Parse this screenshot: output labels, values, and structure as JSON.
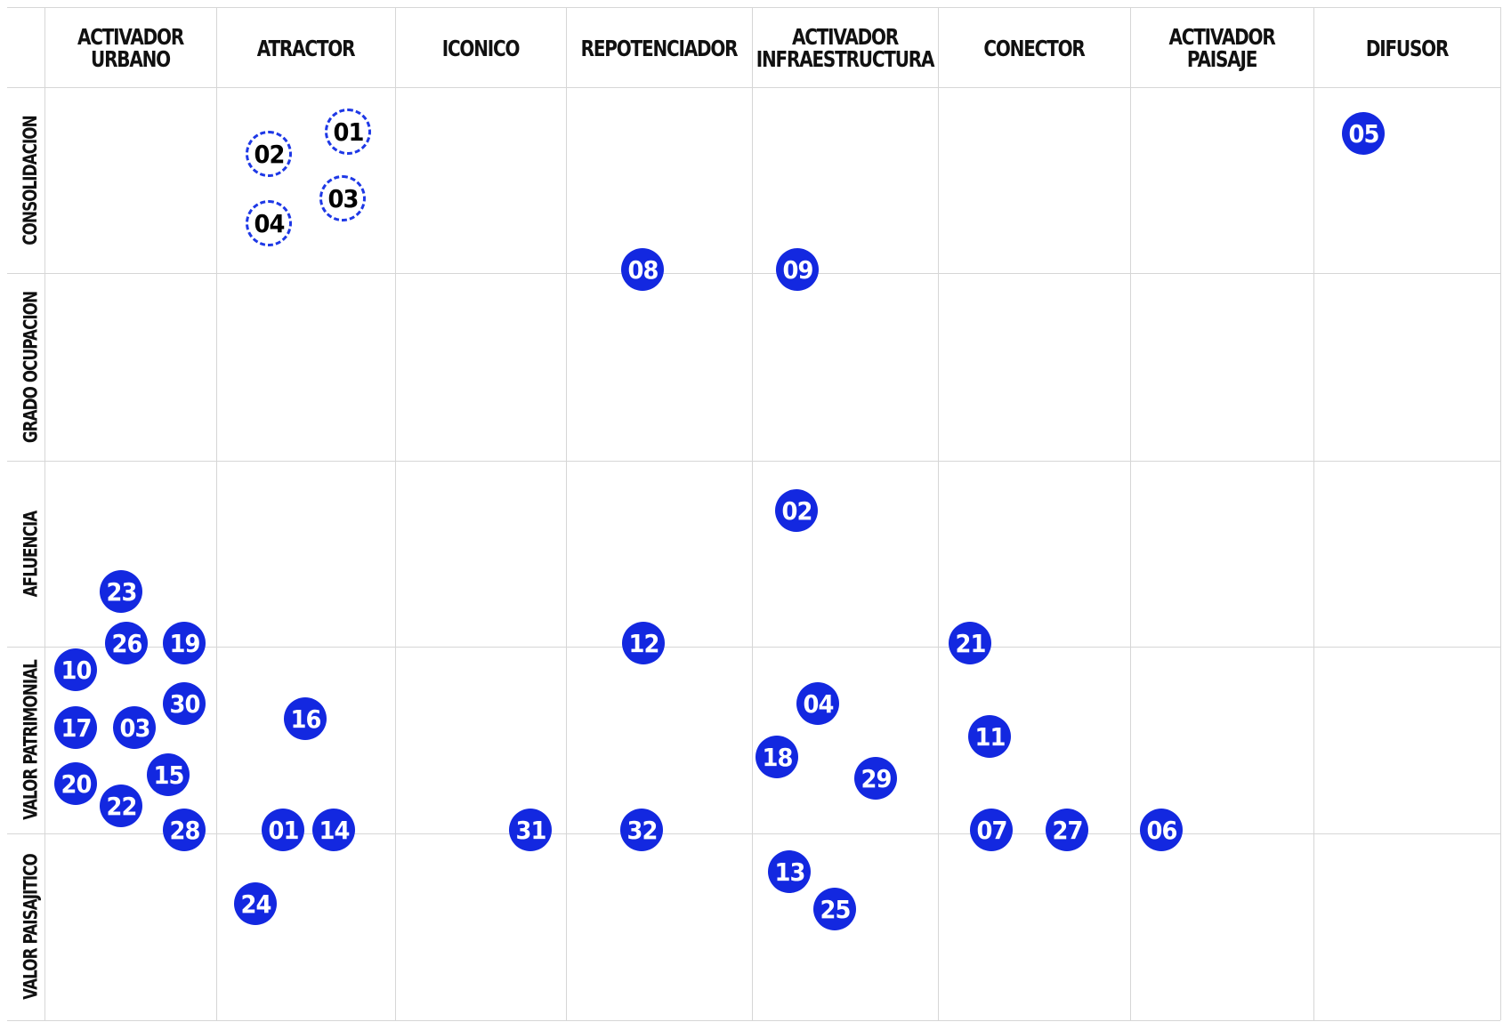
{
  "colors": {
    "accent": "#1328e0",
    "dashed_border": "#1e38e6",
    "grid": "#d6d6d6"
  },
  "columns": [
    {
      "label": "ACTIVADOR\nURBANO"
    },
    {
      "label": "ATRACTOR"
    },
    {
      "label": "ICONICO"
    },
    {
      "label": "REPOTENCIADOR"
    },
    {
      "label": "ACTIVADOR\nINFRAESTRUCTURA"
    },
    {
      "label": "CONECTOR"
    },
    {
      "label": "ACTIVADOR\nPAISAJE"
    },
    {
      "label": "DIFUSOR"
    }
  ],
  "rows": [
    {
      "label": "CONSOLIDACION"
    },
    {
      "label": "GRADO OCUPACION"
    },
    {
      "label": "AFLUENCIA"
    },
    {
      "label": "VALOR PATRIMONIAL"
    },
    {
      "label": "VALOR PAISAJITICO"
    }
  ],
  "markers": [
    {
      "label": "01",
      "style": "dashed"
    },
    {
      "label": "02",
      "style": "dashed"
    },
    {
      "label": "03",
      "style": "dashed"
    },
    {
      "label": "04",
      "style": "dashed"
    },
    {
      "label": "05",
      "style": "solid"
    },
    {
      "label": "08",
      "style": "solid"
    },
    {
      "label": "09",
      "style": "solid"
    },
    {
      "label": "02",
      "style": "solid"
    },
    {
      "label": "23",
      "style": "solid"
    },
    {
      "label": "26",
      "style": "solid"
    },
    {
      "label": "19",
      "style": "solid"
    },
    {
      "label": "12",
      "style": "solid"
    },
    {
      "label": "21",
      "style": "solid"
    },
    {
      "label": "10",
      "style": "solid"
    },
    {
      "label": "30",
      "style": "solid"
    },
    {
      "label": "17",
      "style": "solid"
    },
    {
      "label": "03",
      "style": "solid"
    },
    {
      "label": "16",
      "style": "solid"
    },
    {
      "label": "04",
      "style": "solid"
    },
    {
      "label": "11",
      "style": "solid"
    },
    {
      "label": "18",
      "style": "solid"
    },
    {
      "label": "29",
      "style": "solid"
    },
    {
      "label": "20",
      "style": "solid"
    },
    {
      "label": "15",
      "style": "solid"
    },
    {
      "label": "22",
      "style": "solid"
    },
    {
      "label": "28",
      "style": "solid"
    },
    {
      "label": "01",
      "style": "solid"
    },
    {
      "label": "14",
      "style": "solid"
    },
    {
      "label": "31",
      "style": "solid"
    },
    {
      "label": "32",
      "style": "solid"
    },
    {
      "label": "07",
      "style": "solid"
    },
    {
      "label": "27",
      "style": "solid"
    },
    {
      "label": "06",
      "style": "solid"
    },
    {
      "label": "13",
      "style": "solid"
    },
    {
      "label": "25",
      "style": "solid"
    },
    {
      "label": "24",
      "style": "solid"
    }
  ]
}
